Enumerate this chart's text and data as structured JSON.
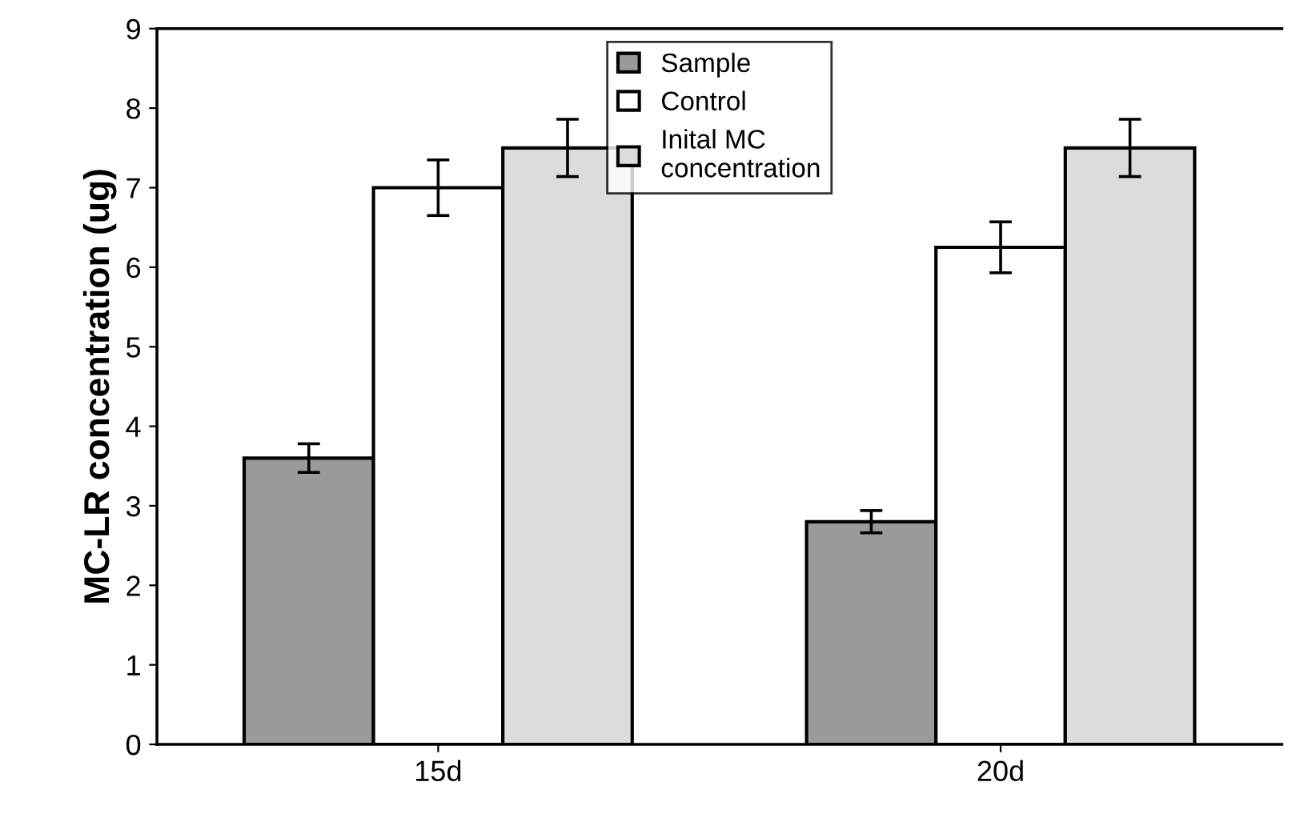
{
  "chart_data": {
    "type": "bar",
    "ylabel": "MC-LR concentration (ug)",
    "categories": [
      "15d",
      "20d"
    ],
    "series": [
      {
        "name": "Sample",
        "color": "#9a9a9a",
        "values": [
          3.6,
          2.8
        ],
        "errors": [
          0.18,
          0.14
        ]
      },
      {
        "name": "Control",
        "color": "#ffffff",
        "values": [
          7.0,
          6.25
        ],
        "errors": [
          0.35,
          0.32
        ]
      },
      {
        "name": "Inital MC\nconcentration",
        "color": "#dcdcdc",
        "values": [
          7.5,
          7.5
        ],
        "errors": [
          0.36,
          0.36
        ]
      }
    ],
    "ylim": [
      0,
      9
    ],
    "yticks": [
      0,
      1,
      2,
      3,
      4,
      5,
      6,
      7,
      8,
      9
    ],
    "grid": false,
    "legend": "top"
  }
}
